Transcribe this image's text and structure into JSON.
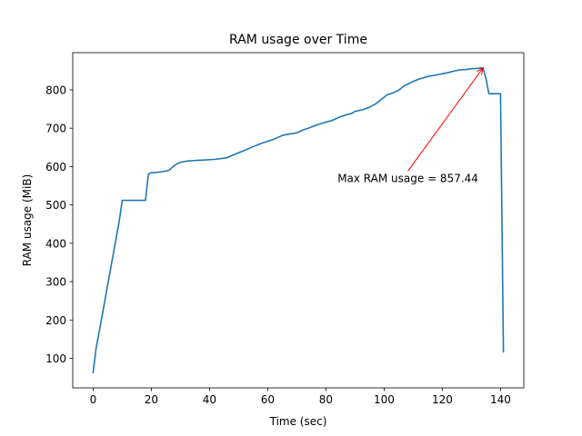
{
  "chart_data": {
    "type": "line",
    "title": "RAM usage over Time",
    "xlabel": "Time (sec)",
    "ylabel": "RAM usage (MiB)",
    "xlim": [
      -7,
      148
    ],
    "ylim": [
      23,
      897
    ],
    "xticks": [
      0,
      20,
      40,
      60,
      80,
      100,
      120,
      140
    ],
    "yticks": [
      100,
      200,
      300,
      400,
      500,
      600,
      700,
      800
    ],
    "grid": false,
    "line_color": "#1f77b4",
    "series": [
      {
        "x": [
          0,
          1,
          3,
          5,
          7,
          9,
          10,
          12,
          14,
          16,
          18,
          19,
          20,
          22,
          24,
          26,
          28,
          29,
          30,
          32,
          35,
          38,
          42,
          46,
          48,
          52,
          55,
          58,
          62,
          65,
          66,
          70,
          72,
          74,
          77,
          80,
          82,
          85,
          87,
          89,
          90,
          93,
          95,
          97,
          99,
          101,
          103,
          105,
          107,
          110,
          112,
          115,
          118,
          120,
          122,
          124,
          126,
          128,
          130,
          132,
          134,
          135,
          136,
          139,
          140,
          141
        ],
        "values": [
          63,
          125,
          207,
          291,
          375,
          459,
          512,
          512,
          512,
          512,
          512,
          580,
          584,
          585,
          587,
          590,
          603,
          608,
          611,
          614,
          616,
          617,
          619,
          623,
          630,
          642,
          652,
          661,
          671,
          681,
          683,
          688,
          695,
          700,
          709,
          716,
          720,
          730,
          735,
          739,
          744,
          749,
          755,
          763,
          775,
          787,
          792,
          799,
          811,
          822,
          828,
          835,
          839,
          842,
          845,
          849,
          852,
          853,
          855,
          856,
          857.44,
          830,
          790,
          790,
          790,
          117
        ]
      }
    ],
    "annotations": [
      {
        "text": "Max RAM usage = 857.44",
        "xy": [
          134,
          857.44
        ],
        "text_xy": [
          84,
          560
        ],
        "color": "#ff0000"
      }
    ]
  }
}
